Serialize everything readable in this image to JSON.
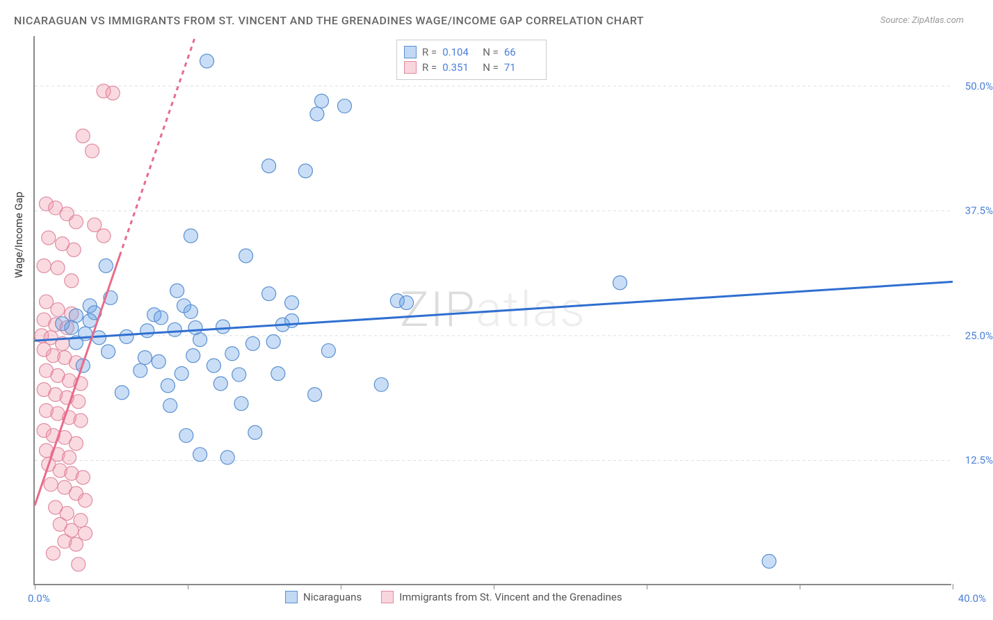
{
  "title": "NICARAGUAN VS IMMIGRANTS FROM ST. VINCENT AND THE GRENADINES WAGE/INCOME GAP CORRELATION CHART",
  "source": "Source: ZipAtlas.com",
  "ylabel": "Wage/Income Gap",
  "watermark_pre": "ZIP",
  "watermark_post": "atlas",
  "xlim": [
    0,
    40
  ],
  "ylim": [
    0,
    55
  ],
  "yticks": [
    {
      "v": 12.5,
      "label": "12.5%"
    },
    {
      "v": 25.0,
      "label": "25.0%"
    },
    {
      "v": 37.5,
      "label": "37.5%"
    },
    {
      "v": 50.0,
      "label": "50.0%"
    }
  ],
  "xticks": [
    0,
    6.67,
    13.33,
    20,
    26.67,
    33.33,
    40
  ],
  "x_left_label": "0.0%",
  "x_right_label": "40.0%",
  "series_blue": {
    "name": "Nicaraguans",
    "color_fill": "rgba(100,160,230,0.35)",
    "color_stroke": "#5a8fd0",
    "line_color": "#2f6fd0",
    "R": "0.104",
    "N": "66",
    "trend": {
      "x1": 0,
      "y1": 24.5,
      "x2": 40,
      "y2": 30.4
    },
    "points": [
      [
        7.5,
        52.5
      ],
      [
        12.5,
        48.5
      ],
      [
        13.5,
        48
      ],
      [
        12.3,
        47.2
      ],
      [
        10.2,
        42
      ],
      [
        11.8,
        41.5
      ],
      [
        6.8,
        35
      ],
      [
        9.2,
        33
      ],
      [
        25.5,
        30.3
      ],
      [
        6.2,
        29.5
      ],
      [
        10.2,
        29.2
      ],
      [
        2.4,
        28
      ],
      [
        3.3,
        28.8
      ],
      [
        6.5,
        28
      ],
      [
        11.2,
        28.3
      ],
      [
        15.8,
        28.5
      ],
      [
        16.2,
        28.3
      ],
      [
        1.8,
        27
      ],
      [
        2.6,
        27.3
      ],
      [
        5.2,
        27.1
      ],
      [
        6.8,
        27.4
      ],
      [
        5.5,
        26.8
      ],
      [
        2.4,
        26.5
      ],
      [
        4.9,
        25.5
      ],
      [
        6.1,
        25.6
      ],
      [
        7,
        25.8
      ],
      [
        8.2,
        25.9
      ],
      [
        10.8,
        26.1
      ],
      [
        11.2,
        26.5
      ],
      [
        2.8,
        24.8
      ],
      [
        4,
        24.9
      ],
      [
        7.2,
        24.6
      ],
      [
        9.5,
        24.2
      ],
      [
        12.8,
        23.5
      ],
      [
        3.2,
        23.4
      ],
      [
        4.8,
        22.8
      ],
      [
        5.4,
        22.4
      ],
      [
        6.9,
        23
      ],
      [
        8.6,
        23.2
      ],
      [
        10.4,
        24.4
      ],
      [
        2.1,
        22
      ],
      [
        7.8,
        22
      ],
      [
        4.6,
        21.5
      ],
      [
        6.4,
        21.2
      ],
      [
        8.9,
        21.1
      ],
      [
        10.6,
        21.2
      ],
      [
        5.8,
        20
      ],
      [
        8.1,
        20.2
      ],
      [
        15.1,
        20.1
      ],
      [
        5.9,
        18
      ],
      [
        9,
        18.2
      ],
      [
        3.8,
        19.3
      ],
      [
        12.2,
        19.1
      ],
      [
        6.6,
        15
      ],
      [
        9.6,
        15.3
      ],
      [
        7.2,
        13.1
      ],
      [
        8.4,
        12.8
      ],
      [
        1.6,
        25.8
      ],
      [
        2.2,
        25.2
      ],
      [
        1.2,
        26.2
      ],
      [
        1.8,
        24.3
      ],
      [
        32,
        2.4
      ],
      [
        3.1,
        32
      ]
    ]
  },
  "series_pink": {
    "name": "Immigrants from St. Vincent and the Grenadines",
    "color_fill": "rgba(240,150,170,0.35)",
    "color_stroke": "#e08aa0",
    "line_color": "#e86b8a",
    "R": "0.351",
    "N": "71",
    "trend_solid": {
      "x1": 0,
      "y1": 8,
      "x2": 3.7,
      "y2": 33
    },
    "trend_dash": {
      "x1": 3.7,
      "y1": 33,
      "x2": 7,
      "y2": 55
    },
    "points": [
      [
        3,
        49.5
      ],
      [
        3.4,
        49.3
      ],
      [
        2.1,
        45
      ],
      [
        2.5,
        43.5
      ],
      [
        0.5,
        38.2
      ],
      [
        0.9,
        37.8
      ],
      [
        1.4,
        37.2
      ],
      [
        1.8,
        36.4
      ],
      [
        2.6,
        36.1
      ],
      [
        3,
        35
      ],
      [
        0.6,
        34.8
      ],
      [
        1.2,
        34.2
      ],
      [
        1.7,
        33.6
      ],
      [
        0.4,
        32
      ],
      [
        1,
        31.8
      ],
      [
        1.6,
        30.5
      ],
      [
        0.5,
        28.4
      ],
      [
        1,
        27.6
      ],
      [
        1.6,
        27.2
      ],
      [
        0.4,
        26.6
      ],
      [
        0.9,
        26.1
      ],
      [
        1.4,
        25.8
      ],
      [
        0.3,
        25
      ],
      [
        0.7,
        24.8
      ],
      [
        1.2,
        24.2
      ],
      [
        0.4,
        23.6
      ],
      [
        0.8,
        23
      ],
      [
        1.3,
        22.8
      ],
      [
        1.8,
        22.3
      ],
      [
        0.5,
        21.5
      ],
      [
        1,
        21
      ],
      [
        1.5,
        20.5
      ],
      [
        2,
        20.2
      ],
      [
        0.4,
        19.6
      ],
      [
        0.9,
        19.1
      ],
      [
        1.4,
        18.8
      ],
      [
        1.9,
        18.4
      ],
      [
        0.5,
        17.5
      ],
      [
        1,
        17.2
      ],
      [
        1.5,
        16.8
      ],
      [
        2,
        16.5
      ],
      [
        0.4,
        15.5
      ],
      [
        0.8,
        15
      ],
      [
        1.3,
        14.8
      ],
      [
        1.8,
        14.2
      ],
      [
        0.5,
        13.5
      ],
      [
        1,
        13.1
      ],
      [
        1.5,
        12.8
      ],
      [
        0.6,
        12.1
      ],
      [
        1.1,
        11.5
      ],
      [
        1.6,
        11.2
      ],
      [
        2.1,
        10.8
      ],
      [
        0.7,
        10.1
      ],
      [
        1.3,
        9.8
      ],
      [
        1.8,
        9.2
      ],
      [
        2.2,
        8.5
      ],
      [
        0.9,
        7.8
      ],
      [
        1.4,
        7.2
      ],
      [
        2,
        6.5
      ],
      [
        1.1,
        6.1
      ],
      [
        1.6,
        5.5
      ],
      [
        2.2,
        5.2
      ],
      [
        1.3,
        4.4
      ],
      [
        1.8,
        4.1
      ],
      [
        0.8,
        3.2
      ],
      [
        1.9,
        2.1
      ]
    ]
  },
  "legend_labels": {
    "R": "R =",
    "N": "N ="
  },
  "marker_radius": 10,
  "plot_bg": "#ffffff",
  "grid_color": "#dddddd"
}
